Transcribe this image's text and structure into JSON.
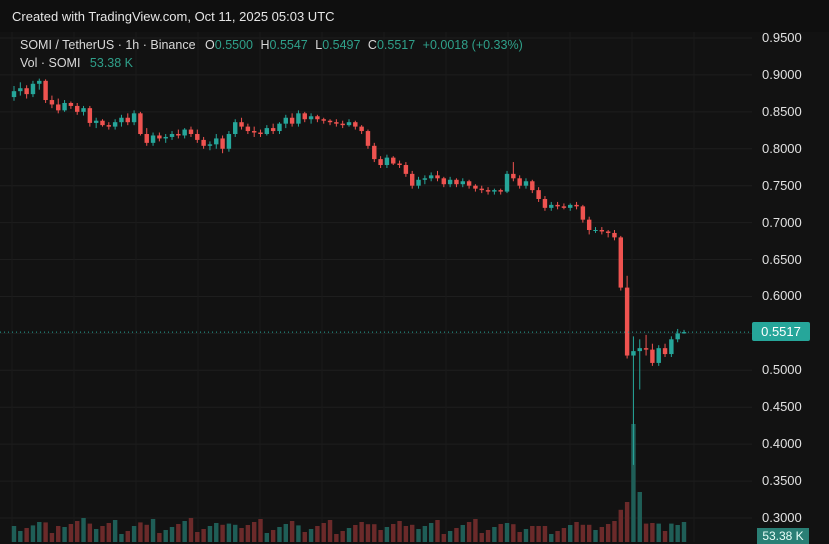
{
  "header": {
    "text": "Created with TradingView.com, Oct 11, 2025 05:03 UTC"
  },
  "legend": {
    "symbol": "SOMI / TetherUS · 1h · Binance",
    "open_label": "O",
    "open": "0.5500",
    "high_label": "H",
    "high": "0.5547",
    "low_label": "L",
    "low": "0.5497",
    "close_label": "C",
    "close": "0.5517",
    "change": "+0.0018 (+0.33%)",
    "vol_label": "Vol · SOMI",
    "vol_value": "53.38 K"
  },
  "price_badge": "0.5517",
  "vol_badge": "53.38 K",
  "colors": {
    "up": "#26a69a",
    "down": "#ef5350",
    "bg": "#121212",
    "grid": "#1f1f1f"
  },
  "chart_data": {
    "type": "candlestick",
    "ylim": [
      0.28,
      0.96
    ],
    "y_ticks": [
      "0.9500",
      "0.9000",
      "0.8500",
      "0.8000",
      "0.7500",
      "0.7000",
      "0.6500",
      "0.6000",
      "0.5500",
      "0.5000",
      "0.4500",
      "0.4000",
      "0.3500",
      "0.3000"
    ],
    "last_price": 0.5517,
    "ohlc": [
      [
        0.87,
        0.885,
        0.865,
        0.878
      ],
      [
        0.878,
        0.89,
        0.872,
        0.882
      ],
      [
        0.882,
        0.886,
        0.868,
        0.874
      ],
      [
        0.874,
        0.892,
        0.87,
        0.888
      ],
      [
        0.888,
        0.895,
        0.88,
        0.892
      ],
      [
        0.892,
        0.894,
        0.862,
        0.866
      ],
      [
        0.866,
        0.872,
        0.855,
        0.86
      ],
      [
        0.86,
        0.868,
        0.848,
        0.852
      ],
      [
        0.852,
        0.866,
        0.85,
        0.862
      ],
      [
        0.862,
        0.864,
        0.854,
        0.858
      ],
      [
        0.858,
        0.862,
        0.846,
        0.85
      ],
      [
        0.85,
        0.858,
        0.845,
        0.855
      ],
      [
        0.855,
        0.858,
        0.83,
        0.835
      ],
      [
        0.835,
        0.842,
        0.828,
        0.838
      ],
      [
        0.838,
        0.84,
        0.83,
        0.832
      ],
      [
        0.832,
        0.836,
        0.826,
        0.83
      ],
      [
        0.83,
        0.84,
        0.826,
        0.836
      ],
      [
        0.836,
        0.846,
        0.83,
        0.842
      ],
      [
        0.842,
        0.848,
        0.832,
        0.836
      ],
      [
        0.836,
        0.852,
        0.832,
        0.848
      ],
      [
        0.848,
        0.85,
        0.818,
        0.82
      ],
      [
        0.82,
        0.828,
        0.804,
        0.808
      ],
      [
        0.808,
        0.822,
        0.804,
        0.818
      ],
      [
        0.818,
        0.822,
        0.81,
        0.814
      ],
      [
        0.814,
        0.82,
        0.808,
        0.816
      ],
      [
        0.816,
        0.824,
        0.812,
        0.82
      ],
      [
        0.82,
        0.826,
        0.814,
        0.818
      ],
      [
        0.818,
        0.828,
        0.814,
        0.826
      ],
      [
        0.826,
        0.83,
        0.816,
        0.82
      ],
      [
        0.82,
        0.826,
        0.808,
        0.812
      ],
      [
        0.812,
        0.816,
        0.8,
        0.804
      ],
      [
        0.804,
        0.81,
        0.798,
        0.806
      ],
      [
        0.806,
        0.82,
        0.8,
        0.814
      ],
      [
        0.814,
        0.818,
        0.794,
        0.8
      ],
      [
        0.8,
        0.824,
        0.796,
        0.82
      ],
      [
        0.82,
        0.84,
        0.816,
        0.836
      ],
      [
        0.836,
        0.842,
        0.826,
        0.83
      ],
      [
        0.83,
        0.834,
        0.82,
        0.824
      ],
      [
        0.824,
        0.83,
        0.816,
        0.822
      ],
      [
        0.822,
        0.826,
        0.816,
        0.82
      ],
      [
        0.82,
        0.832,
        0.818,
        0.828
      ],
      [
        0.828,
        0.834,
        0.82,
        0.824
      ],
      [
        0.824,
        0.836,
        0.82,
        0.834
      ],
      [
        0.834,
        0.846,
        0.828,
        0.842
      ],
      [
        0.842,
        0.848,
        0.83,
        0.834
      ],
      [
        0.834,
        0.852,
        0.83,
        0.848
      ],
      [
        0.848,
        0.85,
        0.836,
        0.84
      ],
      [
        0.84,
        0.848,
        0.834,
        0.844
      ],
      [
        0.844,
        0.846,
        0.836,
        0.84
      ],
      [
        0.84,
        0.842,
        0.834,
        0.838
      ],
      [
        0.838,
        0.84,
        0.832,
        0.836
      ],
      [
        0.836,
        0.84,
        0.83,
        0.834
      ],
      [
        0.834,
        0.838,
        0.828,
        0.832
      ],
      [
        0.832,
        0.84,
        0.83,
        0.836
      ],
      [
        0.836,
        0.838,
        0.826,
        0.83
      ],
      [
        0.83,
        0.832,
        0.82,
        0.824
      ],
      [
        0.824,
        0.826,
        0.8,
        0.804
      ],
      [
        0.804,
        0.808,
        0.782,
        0.786
      ],
      [
        0.786,
        0.79,
        0.774,
        0.778
      ],
      [
        0.778,
        0.792,
        0.774,
        0.788
      ],
      [
        0.788,
        0.79,
        0.778,
        0.78
      ],
      [
        0.78,
        0.784,
        0.774,
        0.778
      ],
      [
        0.778,
        0.782,
        0.762,
        0.766
      ],
      [
        0.766,
        0.77,
        0.746,
        0.75
      ],
      [
        0.75,
        0.762,
        0.746,
        0.758
      ],
      [
        0.758,
        0.764,
        0.752,
        0.76
      ],
      [
        0.76,
        0.768,
        0.756,
        0.764
      ],
      [
        0.764,
        0.77,
        0.756,
        0.76
      ],
      [
        0.76,
        0.762,
        0.748,
        0.752
      ],
      [
        0.752,
        0.762,
        0.748,
        0.758
      ],
      [
        0.758,
        0.76,
        0.748,
        0.752
      ],
      [
        0.752,
        0.76,
        0.748,
        0.756
      ],
      [
        0.756,
        0.758,
        0.746,
        0.75
      ],
      [
        0.75,
        0.752,
        0.742,
        0.746
      ],
      [
        0.746,
        0.75,
        0.74,
        0.744
      ],
      [
        0.744,
        0.748,
        0.738,
        0.742
      ],
      [
        0.742,
        0.746,
        0.738,
        0.744
      ],
      [
        0.744,
        0.746,
        0.738,
        0.742
      ],
      [
        0.742,
        0.77,
        0.74,
        0.766
      ],
      [
        0.766,
        0.782,
        0.756,
        0.76
      ],
      [
        0.76,
        0.764,
        0.746,
        0.75
      ],
      [
        0.75,
        0.76,
        0.746,
        0.756
      ],
      [
        0.756,
        0.758,
        0.74,
        0.744
      ],
      [
        0.744,
        0.748,
        0.728,
        0.732
      ],
      [
        0.732,
        0.736,
        0.716,
        0.72
      ],
      [
        0.72,
        0.728,
        0.716,
        0.724
      ],
      [
        0.724,
        0.728,
        0.718,
        0.722
      ],
      [
        0.722,
        0.726,
        0.718,
        0.72
      ],
      [
        0.72,
        0.726,
        0.716,
        0.724
      ],
      [
        0.724,
        0.728,
        0.718,
        0.722
      ],
      [
        0.722,
        0.724,
        0.7,
        0.704
      ],
      [
        0.704,
        0.708,
        0.684,
        0.69
      ],
      [
        0.69,
        0.694,
        0.686,
        0.69
      ],
      [
        0.69,
        0.694,
        0.684,
        0.688
      ],
      [
        0.688,
        0.69,
        0.68,
        0.686
      ],
      [
        0.686,
        0.69,
        0.676,
        0.68
      ],
      [
        0.68,
        0.682,
        0.608,
        0.612
      ],
      [
        0.612,
        0.628,
        0.516,
        0.52
      ],
      [
        0.52,
        0.546,
        0.372,
        0.526
      ],
      [
        0.526,
        0.542,
        0.474,
        0.53
      ],
      [
        0.53,
        0.548,
        0.52,
        0.528
      ],
      [
        0.528,
        0.536,
        0.506,
        0.51
      ],
      [
        0.51,
        0.534,
        0.506,
        0.53
      ],
      [
        0.53,
        0.536,
        0.518,
        0.522
      ],
      [
        0.522,
        0.546,
        0.518,
        0.542
      ],
      [
        0.542,
        0.556,
        0.538,
        0.55
      ],
      [
        0.55,
        0.5547,
        0.5497,
        0.5517
      ]
    ],
    "volume_max": 100
  }
}
